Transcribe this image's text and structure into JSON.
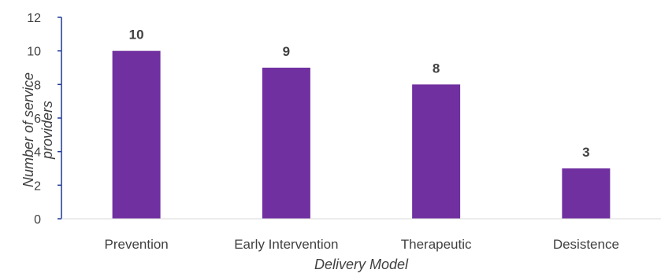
{
  "chart_data": {
    "type": "bar",
    "categories": [
      "Prevention",
      "Early Intervention",
      "Therapeutic",
      "Desistence"
    ],
    "values": [
      10,
      9,
      8,
      3
    ],
    "xlabel": "Delivery Model",
    "ylabel_lines": [
      "Number of service",
      "providers"
    ],
    "ylim": [
      0,
      12
    ],
    "yticks": [
      0,
      2,
      4,
      6,
      8,
      10,
      12
    ],
    "bar_color": "#7030a0",
    "axis_color": "#1f3a93",
    "grid": false,
    "legend": "none",
    "data_labels": true
  }
}
